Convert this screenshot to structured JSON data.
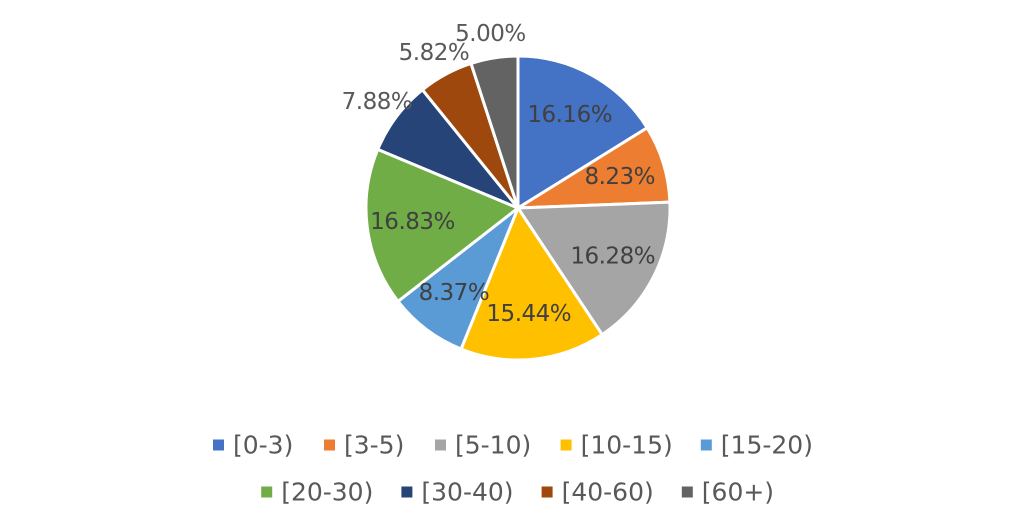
{
  "chart_data": {
    "type": "pie",
    "title": "",
    "legend_position": "bottom",
    "slices": [
      {
        "label": "[0-3)",
        "value": 16.16,
        "display": "16.16%",
        "color": "#4472C4"
      },
      {
        "label": "[3-5)",
        "value": 8.23,
        "display": "8.23%",
        "color": "#ED7D31"
      },
      {
        "label": "[5-10)",
        "value": 16.28,
        "display": "16.28%",
        "color": "#A5A5A5"
      },
      {
        "label": "[10-15)",
        "value": 15.44,
        "display": "15.44%",
        "color": "#FFC000"
      },
      {
        "label": "[15-20)",
        "value": 8.37,
        "display": "8.37%",
        "color": "#5B9BD5"
      },
      {
        "label": "[20-30)",
        "value": 16.83,
        "display": "16.83%",
        "color": "#70AD47"
      },
      {
        "label": "[30-40)",
        "value": 7.88,
        "display": "7.88%",
        "color": "#264478"
      },
      {
        "label": "[40-60)",
        "value": 5.82,
        "display": "5.82%",
        "color": "#9E480E"
      },
      {
        "label": "[60+)",
        "value": 5.0,
        "display": "5.00%",
        "color": "#636363"
      }
    ]
  }
}
